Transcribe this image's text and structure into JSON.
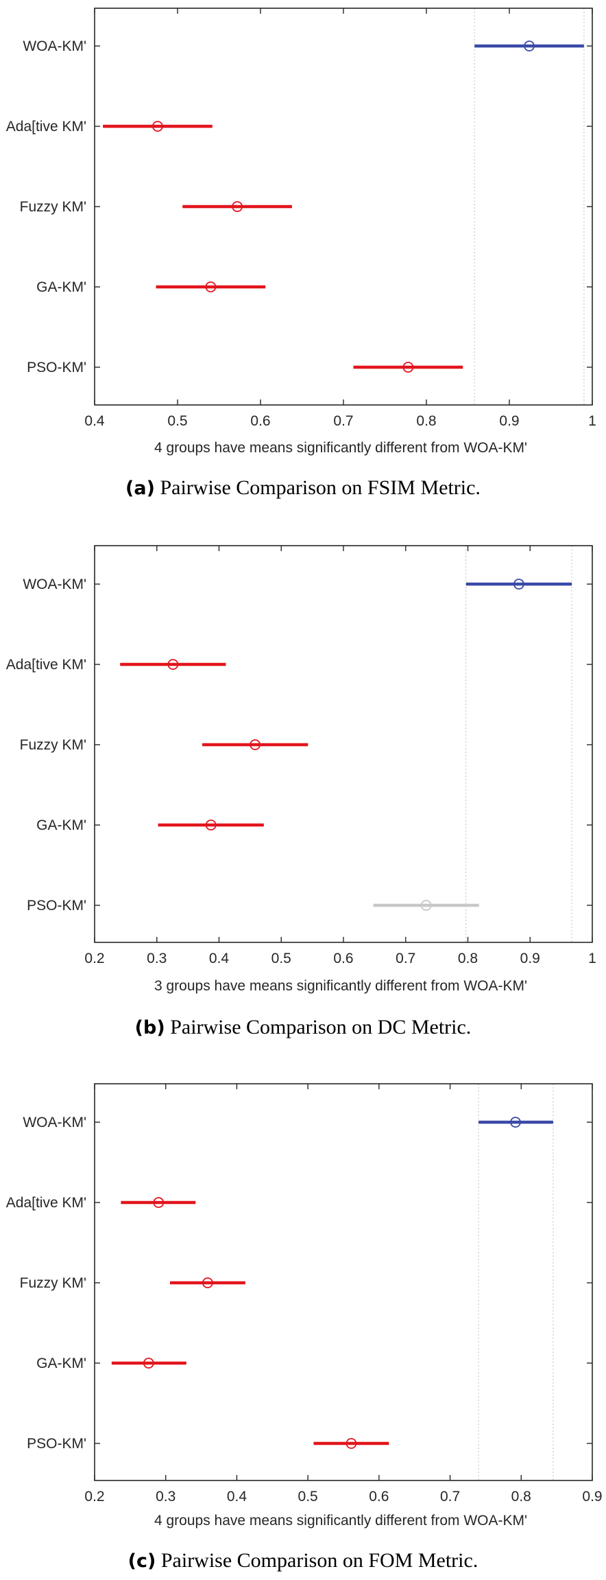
{
  "chart_data": [
    {
      "type": "errorbar",
      "xlabel": "4 groups have means significantly different from WOA-KM'",
      "xlim": [
        0.4,
        1.0
      ],
      "xticks": [
        "0.4",
        "0.5",
        "0.6",
        "0.7",
        "0.8",
        "0.9",
        "1"
      ],
      "groups": [
        {
          "label": "WOA-KM'",
          "mean": 0.924,
          "low": 0.858,
          "high": 0.99,
          "color": "#3a49a8"
        },
        {
          "label": "Ada[tive KM'",
          "mean": 0.476,
          "low": 0.41,
          "high": 0.542,
          "color": "#e3151d"
        },
        {
          "label": "Fuzzy KM'",
          "mean": 0.572,
          "low": 0.506,
          "high": 0.638,
          "color": "#e3151d"
        },
        {
          "label": "GA-KM'",
          "mean": 0.54,
          "low": 0.474,
          "high": 0.606,
          "color": "#e3151d"
        },
        {
          "label": "PSO-KM'",
          "mean": 0.778,
          "low": 0.712,
          "high": 0.844,
          "color": "#e3151d"
        }
      ],
      "reference_lines": [
        0.858,
        0.99
      ],
      "caption_tag": "(a)",
      "caption_text": "Pairwise Comparison on FSIM Metric."
    },
    {
      "type": "errorbar",
      "xlabel": "3 groups have means significantly different from WOA-KM'",
      "xlim": [
        0.2,
        1.0
      ],
      "xticks": [
        "0.2",
        "0.3",
        "0.4",
        "0.5",
        "0.6",
        "0.7",
        "0.8",
        "0.9",
        "1"
      ],
      "groups": [
        {
          "label": "WOA-KM'",
          "mean": 0.882,
          "low": 0.797,
          "high": 0.967,
          "color": "#3a49a8"
        },
        {
          "label": "Ada[tive KM'",
          "mean": 0.326,
          "low": 0.241,
          "high": 0.411,
          "color": "#e3151d"
        },
        {
          "label": "Fuzzy KM'",
          "mean": 0.458,
          "low": 0.373,
          "high": 0.543,
          "color": "#e3151d"
        },
        {
          "label": "GA-KM'",
          "mean": 0.387,
          "low": 0.302,
          "high": 0.472,
          "color": "#e3151d"
        },
        {
          "label": "PSO-KM'",
          "mean": 0.733,
          "low": 0.648,
          "high": 0.818,
          "color": "#c8c8c8"
        }
      ],
      "reference_lines": [
        0.797,
        0.967
      ],
      "caption_tag": "(b)",
      "caption_text": "Pairwise Comparison on DC Metric."
    },
    {
      "type": "errorbar",
      "xlabel": "4 groups have means significantly different from WOA-KM'",
      "xlim": [
        0.2,
        0.9
      ],
      "xticks": [
        "0.2",
        "0.3",
        "0.4",
        "0.5",
        "0.6",
        "0.7",
        "0.8",
        "0.9"
      ],
      "groups": [
        {
          "label": "WOA-KM'",
          "mean": 0.792,
          "low": 0.74,
          "high": 0.845,
          "color": "#3a49a8"
        },
        {
          "label": "Ada[tive KM'",
          "mean": 0.29,
          "low": 0.237,
          "high": 0.342,
          "color": "#e3151d"
        },
        {
          "label": "Fuzzy KM'",
          "mean": 0.359,
          "low": 0.306,
          "high": 0.412,
          "color": "#e3151d"
        },
        {
          "label": "GA-KM'",
          "mean": 0.276,
          "low": 0.224,
          "high": 0.329,
          "color": "#e3151d"
        },
        {
          "label": "PSO-KM'",
          "mean": 0.561,
          "low": 0.508,
          "high": 0.614,
          "color": "#e3151d"
        }
      ],
      "reference_lines": [
        0.74,
        0.845
      ],
      "caption_tag": "(c)",
      "caption_text": "Pairwise Comparison on FOM Metric."
    }
  ]
}
